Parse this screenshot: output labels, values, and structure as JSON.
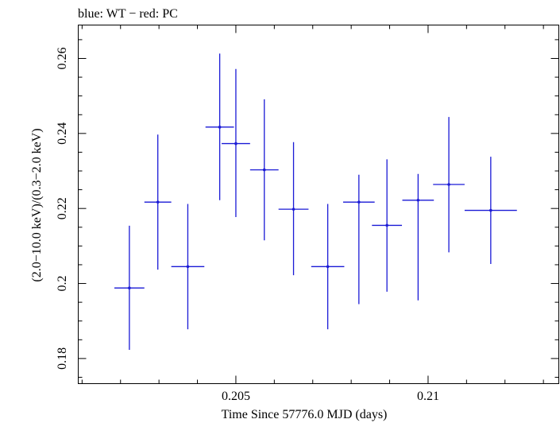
{
  "chart_data": {
    "type": "scatter",
    "title": "blue: WT − red: PC",
    "xlabel": "Time Since 57776.0 MJD (days)",
    "ylabel": "(2.0−10.0 keV)/(0.3−2.0 keV)",
    "xlim": [
      0.2009,
      0.2134
    ],
    "ylim": [
      0.1733,
      0.2689
    ],
    "x_ticks": [
      {
        "value": 0.205,
        "label": "0.205"
      },
      {
        "value": 0.21,
        "label": "0.21"
      }
    ],
    "y_ticks": [
      {
        "value": 0.18,
        "label": "0.18"
      },
      {
        "value": 0.2,
        "label": "0.2"
      },
      {
        "value": 0.22,
        "label": "0.22"
      },
      {
        "value": 0.24,
        "label": "0.24"
      },
      {
        "value": 0.26,
        "label": "0.26"
      }
    ],
    "series": [
      {
        "color": "#1a1ad6",
        "points": [
          {
            "x": 0.20223,
            "xerr": 0.00039,
            "y": 0.1988,
            "ylo": 0.1823,
            "yhi": 0.2154
          },
          {
            "x": 0.20297,
            "xerr": 0.00035,
            "y": 0.2217,
            "ylo": 0.2037,
            "yhi": 0.2397
          },
          {
            "x": 0.20375,
            "xerr": 0.00043,
            "y": 0.2045,
            "ylo": 0.1878,
            "yhi": 0.2212
          },
          {
            "x": 0.20458,
            "xerr": 0.00037,
            "y": 0.2417,
            "ylo": 0.2222,
            "yhi": 0.2613
          },
          {
            "x": 0.205,
            "xerr": 0.00037,
            "y": 0.2373,
            "ylo": 0.2177,
            "yhi": 0.2572
          },
          {
            "x": 0.20574,
            "xerr": 0.00037,
            "y": 0.2303,
            "ylo": 0.2115,
            "yhi": 0.2491
          },
          {
            "x": 0.2065,
            "xerr": 0.00039,
            "y": 0.2198,
            "ylo": 0.2022,
            "yhi": 0.2377
          },
          {
            "x": 0.20739,
            "xerr": 0.00043,
            "y": 0.2045,
            "ylo": 0.1878,
            "yhi": 0.2212
          },
          {
            "x": 0.2082,
            "xerr": 0.00041,
            "y": 0.2217,
            "ylo": 0.1945,
            "yhi": 0.229
          },
          {
            "x": 0.20893,
            "xerr": 0.00039,
            "y": 0.2155,
            "ylo": 0.1978,
            "yhi": 0.2331
          },
          {
            "x": 0.20974,
            "xerr": 0.00041,
            "y": 0.2222,
            "ylo": 0.1955,
            "yhi": 0.2292
          },
          {
            "x": 0.21054,
            "xerr": 0.00041,
            "y": 0.2264,
            "ylo": 0.2083,
            "yhi": 0.2444
          },
          {
            "x": 0.21163,
            "xerr": 0.00068,
            "y": 0.2195,
            "ylo": 0.2052,
            "yhi": 0.2338
          }
        ]
      }
    ]
  }
}
